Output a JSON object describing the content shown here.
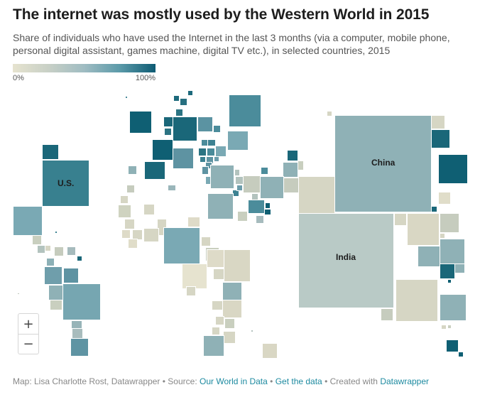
{
  "title": "The internet was mostly used by the Western World in 2015",
  "subtitle": "Share of individuals who have used the Internet in the last 3 months (via a computer, mobile phone, personal digital assistant, games machine, digital TV etc.), in selected countries, 2015",
  "legend": {
    "min_label": "0%",
    "max_label": "100%"
  },
  "map_labels": {
    "us": "U.S.",
    "china": "China",
    "india": "India"
  },
  "zoom": {
    "in": "+",
    "out": "−"
  },
  "footer": {
    "prefix": "Map: Lisa Charlotte Rost, Datawrapper • Source: ",
    "source_link": "Our World in Data",
    "sep1": " • ",
    "data_link": "Get the data",
    "sep2": " • Created with ",
    "dw_link": "Datawrapper"
  },
  "colors": {
    "accent_link": "#1d8aa0",
    "scale_low": "#e6e3cf",
    "scale_high": "#0e5b73"
  }
}
